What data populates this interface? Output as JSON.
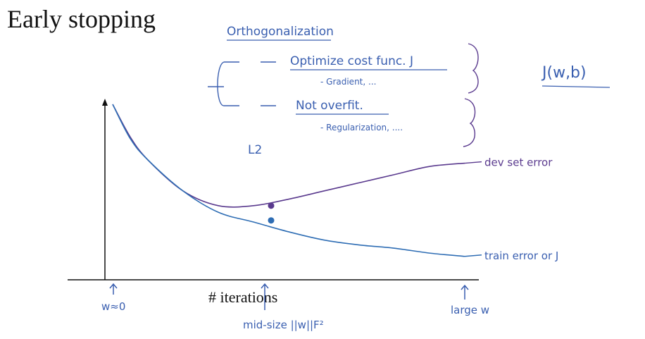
{
  "slide": {
    "title": "Early stopping",
    "notes": {
      "orthogonalization": "Orthogonalization",
      "optimize": "Optimize cost func. J",
      "gradient": "- Gradient, ...",
      "not_overfit": "Not overfit.",
      "regularization": "- Regularization, ....",
      "l2": "L2",
      "cost_fn": "J(w,b)"
    }
  },
  "chart_data": {
    "type": "line",
    "xlabel": "# iterations",
    "ylabel": "",
    "series": [
      {
        "name": "dev set error",
        "x": [
          0,
          0.05,
          0.1,
          0.2,
          0.3,
          0.4,
          0.5,
          0.6,
          0.7,
          0.8,
          0.9,
          1.0
        ],
        "values": [
          1.0,
          0.8,
          0.66,
          0.47,
          0.38,
          0.38,
          0.42,
          0.47,
          0.52,
          0.57,
          0.62,
          0.64
        ]
      },
      {
        "name": "train error or J",
        "x": [
          0,
          0.05,
          0.1,
          0.2,
          0.3,
          0.4,
          0.5,
          0.6,
          0.7,
          0.8,
          0.9,
          1.0
        ],
        "values": [
          1.0,
          0.79,
          0.66,
          0.47,
          0.34,
          0.28,
          0.22,
          0.17,
          0.14,
          0.12,
          0.09,
          0.07
        ]
      }
    ],
    "markers": [
      {
        "series": "dev set error",
        "x": 0.45,
        "y": 0.38
      },
      {
        "series": "train error or J",
        "x": 0.45,
        "y": 0.29
      }
    ],
    "annotations": {
      "start": "w≈0",
      "mid": "mid-size ||w||F²",
      "end": "large w"
    },
    "colors": {
      "dev": "#5a3a8e",
      "train": "#2e6db4",
      "ink": "#3a5fb0"
    }
  }
}
